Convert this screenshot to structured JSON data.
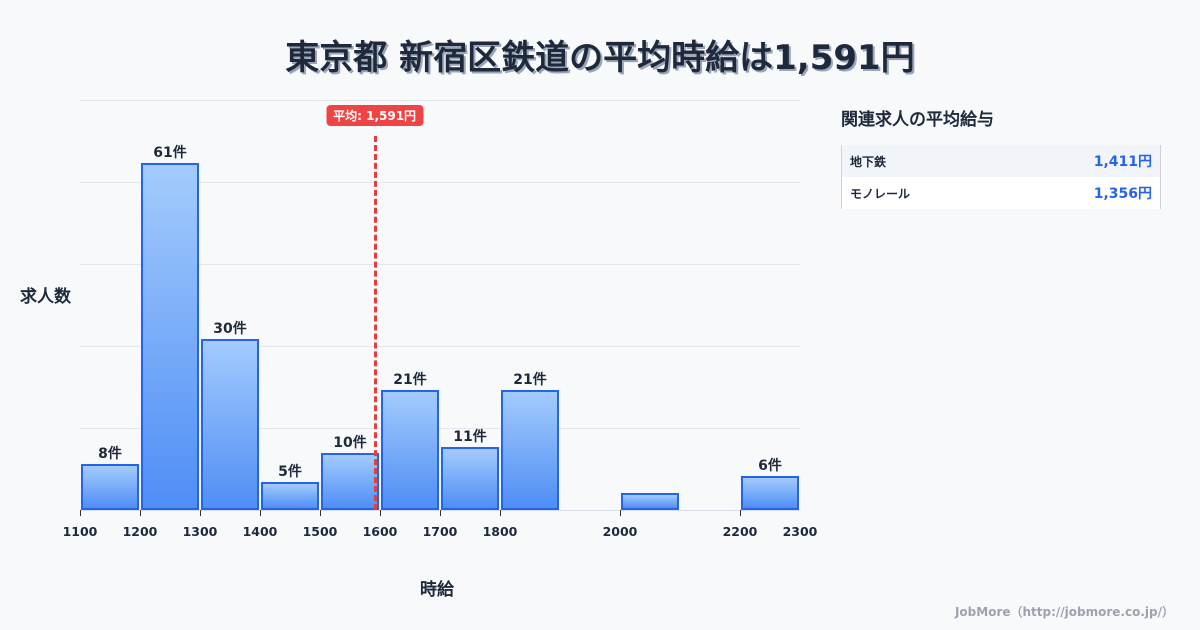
{
  "title": "東京都 新宿区鉄道の平均時給は1,591円",
  "average_badge": "平均: 1,591円",
  "y_axis_label": "求人数",
  "x_axis_label": "時給",
  "side_panel": {
    "title": "関連求人の平均給与",
    "rows": [
      {
        "name": "地下鉄",
        "value": "1,411円"
      },
      {
        "name": "モノレール",
        "value": "1,356円"
      }
    ]
  },
  "footer": "JobMore（http://jobmore.co.jp/）",
  "colors": {
    "bar_border": "#2563eb",
    "bar_top": "#a3cbfd",
    "bar_bottom": "#4f8ef5",
    "average_line": "#ef4444"
  },
  "chart_data": {
    "type": "bar",
    "title": "東京都 新宿区鉄道の平均時給は1,591円",
    "xlabel": "時給",
    "ylabel": "求人数",
    "bins": [
      {
        "start": 1100,
        "end": 1200,
        "count": 8,
        "label": "8件"
      },
      {
        "start": 1200,
        "end": 1300,
        "count": 61,
        "label": "61件"
      },
      {
        "start": 1300,
        "end": 1400,
        "count": 30,
        "label": "30件"
      },
      {
        "start": 1400,
        "end": 1500,
        "count": 5,
        "label": "5件"
      },
      {
        "start": 1500,
        "end": 1600,
        "count": 10,
        "label": "10件"
      },
      {
        "start": 1600,
        "end": 1700,
        "count": 21,
        "label": "21件"
      },
      {
        "start": 1700,
        "end": 1800,
        "count": 11,
        "label": "11件"
      },
      {
        "start": 1800,
        "end": 1900,
        "count": 21,
        "label": "21件"
      },
      {
        "start": 2000,
        "end": 2100,
        "count": 3,
        "label": ""
      },
      {
        "start": 2200,
        "end": 2300,
        "count": 6,
        "label": "6件"
      }
    ],
    "x_ticks": [
      1100,
      1200,
      1300,
      1400,
      1500,
      1600,
      1700,
      1800,
      2000,
      2200,
      2300
    ],
    "xlim": [
      1100,
      2300
    ],
    "ylim": [
      0,
      72
    ],
    "average": 1591,
    "grid": true
  }
}
